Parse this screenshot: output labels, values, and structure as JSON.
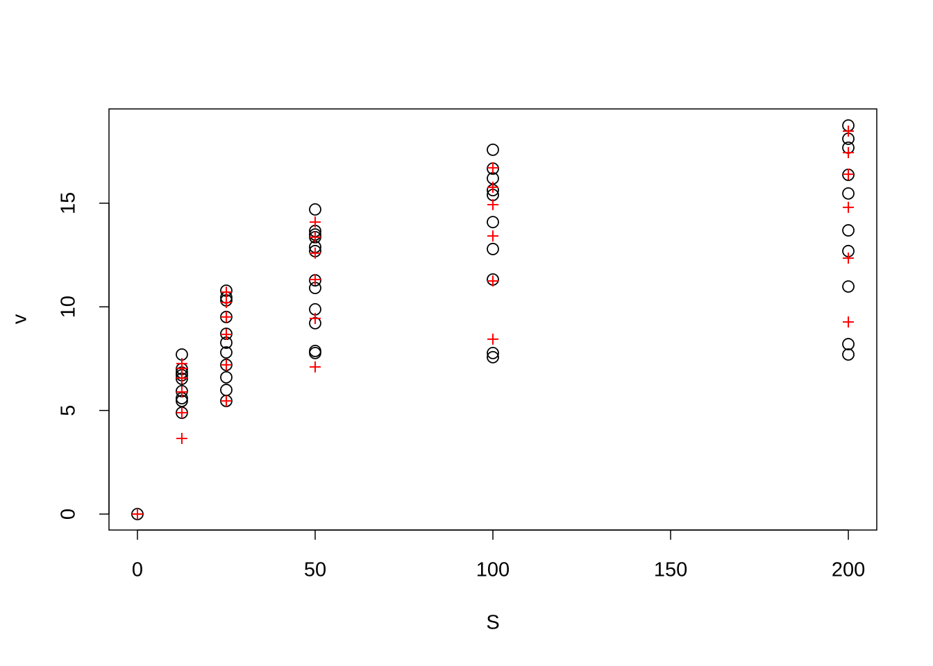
{
  "chart_data": {
    "type": "scatter",
    "x_label": "S",
    "y_label": "v",
    "xlim": [
      -8,
      208
    ],
    "ylim": [
      -0.77,
      19.55
    ],
    "xticks": [
      0,
      50,
      100,
      150,
      200
    ],
    "yticks": [
      0,
      5,
      10,
      15
    ],
    "series": [
      {
        "color": "#000000",
        "marker": "circle",
        "x": [
          0,
          12.5,
          12.5,
          12.5,
          12.5,
          12.5,
          12.5,
          12.5,
          12.5,
          12.5,
          25,
          25,
          25,
          25,
          25,
          25,
          25,
          25,
          25,
          25,
          25,
          50,
          50,
          50,
          50,
          50,
          50,
          50,
          50,
          50,
          50,
          50,
          50,
          100,
          100,
          100,
          100,
          100,
          100,
          100,
          100,
          100,
          100,
          200,
          200,
          200,
          200,
          200,
          200,
          200,
          200,
          200,
          200
        ],
        "values": [
          0,
          7.7,
          7.0,
          6.83,
          6.7,
          6.53,
          5.93,
          5.59,
          5.46,
          4.89,
          10.78,
          10.45,
          10.31,
          9.51,
          8.7,
          8.27,
          7.8,
          7.2,
          6.6,
          5.99,
          5.46,
          14.7,
          13.66,
          13.49,
          13.36,
          12.89,
          12.69,
          11.28,
          10.91,
          9.88,
          9.21,
          7.87,
          7.77,
          17.58,
          16.67,
          16.2,
          15.63,
          15.4,
          14.09,
          12.79,
          11.32,
          7.77,
          7.57,
          18.75,
          18.11,
          17.68,
          16.37,
          15.47,
          13.69,
          12.69,
          10.98,
          8.2,
          7.7
        ]
      },
      {
        "color": "#ff0000",
        "marker": "plus",
        "x": [
          0,
          12.5,
          12.5,
          12.5,
          12.5,
          12.5,
          12.5,
          25,
          25,
          25,
          25,
          25,
          25,
          50,
          50,
          50,
          50,
          50,
          50,
          100,
          100,
          100,
          100,
          100,
          100,
          200,
          200,
          200,
          200,
          200,
          200
        ],
        "values": [
          0,
          7.26,
          7.03,
          6.56,
          5.89,
          4.89,
          3.65,
          10.71,
          10.21,
          9.51,
          8.67,
          7.2,
          5.46,
          14.09,
          13.36,
          12.59,
          11.32,
          9.44,
          7.1,
          16.71,
          15.77,
          14.93,
          13.42,
          11.25,
          8.44,
          18.48,
          17.44,
          16.4,
          14.8,
          12.35,
          9.27
        ]
      }
    ]
  }
}
